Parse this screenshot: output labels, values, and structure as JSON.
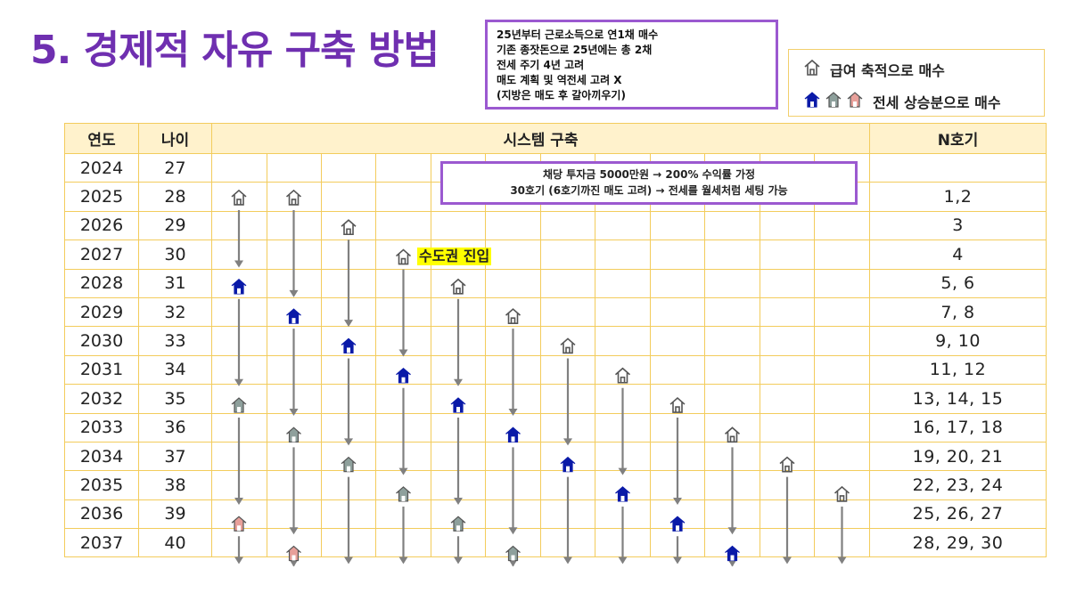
{
  "title": "5. 경제적 자유 구축 방법",
  "note_lines": [
    "25년부터 근로소득으로 연1채 매수",
    "기존 종잣돈으로 25년에는 총 2채",
    "전세 주기 4년 고려",
    "매도 계획 및 역전세 고려 X",
    "(지방은 매도 후 갈아끼우기)"
  ],
  "legend": {
    "salary_label": "급여 축적으로 매수",
    "jeonse_label": "전세 상승분으로 매수"
  },
  "table": {
    "headers": {
      "year": "연도",
      "age": "나이",
      "system": "시스템 구축",
      "nth": "N호기"
    },
    "rows": [
      {
        "year": "2024",
        "age": "27",
        "nth": ""
      },
      {
        "year": "2025",
        "age": "28",
        "nth": "1,2"
      },
      {
        "year": "2026",
        "age": "29",
        "nth": "3"
      },
      {
        "year": "2027",
        "age": "30",
        "nth": "4"
      },
      {
        "year": "2028",
        "age": "31",
        "nth": "5, 6"
      },
      {
        "year": "2029",
        "age": "32",
        "nth": "7, 8"
      },
      {
        "year": "2030",
        "age": "33",
        "nth": "9, 10"
      },
      {
        "year": "2031",
        "age": "34",
        "nth": "11, 12"
      },
      {
        "year": "2032",
        "age": "35",
        "nth": "13, 14, 15"
      },
      {
        "year": "2033",
        "age": "36",
        "nth": "16, 17, 18"
      },
      {
        "year": "2034",
        "age": "37",
        "nth": "19, 20, 21"
      },
      {
        "year": "2035",
        "age": "38",
        "nth": "22, 23, 24"
      },
      {
        "year": "2036",
        "age": "39",
        "nth": "25, 26, 27"
      },
      {
        "year": "2037",
        "age": "40",
        "nth": "28, 29, 30"
      }
    ]
  },
  "annotation": {
    "line1": "채당 투자금 5000만원 → 200% 수익률 가정",
    "line2": "30호기 (6호기까진 매도 고려) → 전세를 월세처럼 세팅 가능"
  },
  "zone_label": "수도권 진입",
  "colors": {
    "title": "#6f2fb0",
    "border_accent": "#9b59d0",
    "grid": "#f3cc5c",
    "header_bg": "#fff2cc",
    "house_outline": "#555555",
    "house_blue": "#0a1aa8",
    "house_gray": "#8ea09c",
    "house_pink": "#e8a09a",
    "arrow": "#808080",
    "highlight": "#ffff00"
  },
  "houses": [
    {
      "col": 0,
      "row": 1,
      "style": "outline"
    },
    {
      "col": 1,
      "row": 1,
      "style": "outline"
    },
    {
      "col": 2,
      "row": 2,
      "style": "outline"
    },
    {
      "col": 3,
      "row": 3,
      "style": "outline"
    },
    {
      "col": 0,
      "row": 4,
      "style": "blue"
    },
    {
      "col": 4,
      "row": 4,
      "style": "outline"
    },
    {
      "col": 1,
      "row": 5,
      "style": "blue"
    },
    {
      "col": 5,
      "row": 5,
      "style": "outline"
    },
    {
      "col": 2,
      "row": 6,
      "style": "blue"
    },
    {
      "col": 6,
      "row": 6,
      "style": "outline"
    },
    {
      "col": 3,
      "row": 7,
      "style": "blue"
    },
    {
      "col": 7,
      "row": 7,
      "style": "outline"
    },
    {
      "col": 0,
      "row": 8,
      "style": "gray"
    },
    {
      "col": 4,
      "row": 8,
      "style": "blue"
    },
    {
      "col": 8,
      "row": 8,
      "style": "outline"
    },
    {
      "col": 1,
      "row": 9,
      "style": "gray"
    },
    {
      "col": 5,
      "row": 9,
      "style": "blue"
    },
    {
      "col": 9,
      "row": 9,
      "style": "outline"
    },
    {
      "col": 2,
      "row": 10,
      "style": "gray"
    },
    {
      "col": 6,
      "row": 10,
      "style": "blue"
    },
    {
      "col": 10,
      "row": 10,
      "style": "outline"
    },
    {
      "col": 3,
      "row": 11,
      "style": "gray"
    },
    {
      "col": 7,
      "row": 11,
      "style": "blue"
    },
    {
      "col": 11,
      "row": 11,
      "style": "outline"
    },
    {
      "col": 0,
      "row": 12,
      "style": "pink"
    },
    {
      "col": 4,
      "row": 12,
      "style": "gray"
    },
    {
      "col": 8,
      "row": 12,
      "style": "blue"
    },
    {
      "col": 1,
      "row": 13,
      "style": "pink"
    },
    {
      "col": 5,
      "row": 13,
      "style": "gray"
    },
    {
      "col": 9,
      "row": 13,
      "style": "blue"
    }
  ],
  "arrows": [
    {
      "col": 0,
      "from": 1,
      "to": 3
    },
    {
      "col": 1,
      "from": 1,
      "to": 4
    },
    {
      "col": 2,
      "from": 2,
      "to": 5
    },
    {
      "col": 3,
      "from": 3,
      "to": 6
    },
    {
      "col": 0,
      "from": 4,
      "to": 7
    },
    {
      "col": 4,
      "from": 4,
      "to": 7
    },
    {
      "col": 1,
      "from": 5,
      "to": 8
    },
    {
      "col": 5,
      "from": 5,
      "to": 8
    },
    {
      "col": 2,
      "from": 6,
      "to": 9
    },
    {
      "col": 6,
      "from": 6,
      "to": 9
    },
    {
      "col": 3,
      "from": 7,
      "to": 10
    },
    {
      "col": 7,
      "from": 7,
      "to": 10
    },
    {
      "col": 0,
      "from": 8,
      "to": 11
    },
    {
      "col": 4,
      "from": 8,
      "to": 11
    },
    {
      "col": 8,
      "from": 8,
      "to": 11
    },
    {
      "col": 1,
      "from": 9,
      "to": 12
    },
    {
      "col": 5,
      "from": 9,
      "to": 12
    },
    {
      "col": 9,
      "from": 9,
      "to": 12
    },
    {
      "col": 2,
      "from": 10,
      "to": 13
    },
    {
      "col": 6,
      "from": 10,
      "to": 13
    },
    {
      "col": 10,
      "from": 10,
      "to": 13
    },
    {
      "col": 3,
      "from": 11,
      "to": 13
    },
    {
      "col": 7,
      "from": 11,
      "to": 13
    },
    {
      "col": 11,
      "from": 11,
      "to": 13
    },
    {
      "col": 0,
      "from": 12,
      "to": 13
    },
    {
      "col": 4,
      "from": 12,
      "to": 13
    },
    {
      "col": 8,
      "from": 12,
      "to": 13
    },
    {
      "col": 1,
      "from": 13,
      "to": 13
    },
    {
      "col": 5,
      "from": 13,
      "to": 13
    },
    {
      "col": 9,
      "from": 13,
      "to": 13
    }
  ]
}
